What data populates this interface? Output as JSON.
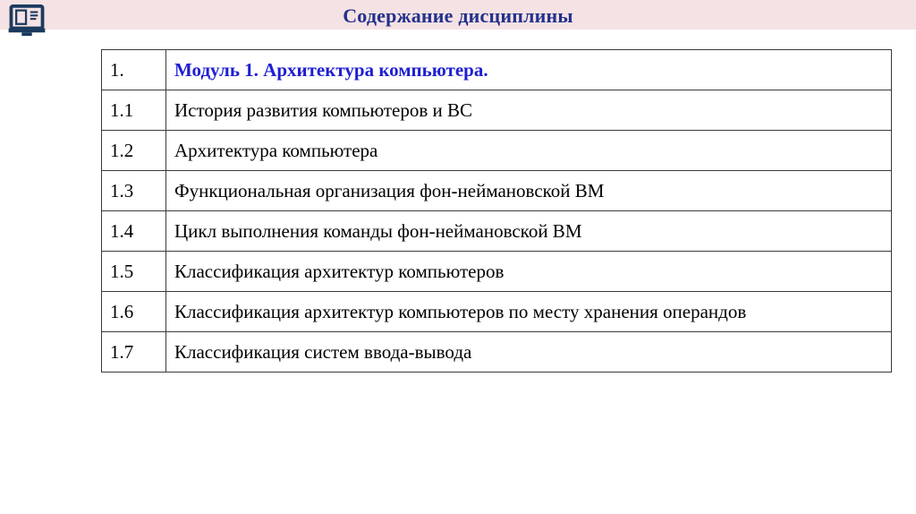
{
  "header": {
    "title": "Содержание дисциплины",
    "icon": "open-book-icon",
    "bg_color": "#f5e2e4",
    "title_color": "#23318d",
    "icon_color": "#1b3a5e"
  },
  "table": {
    "border_color": "#3a3a3a",
    "module_color": "#1e1ed2",
    "rows": [
      {
        "num": "1.",
        "title": "Модуль 1. Архитектура компьютера.",
        "style": "module"
      },
      {
        "num": "1.1",
        "title": "История развития компьютеров и ВС",
        "style": "normal"
      },
      {
        "num": "1.2",
        "title": "Архитектура компьютера",
        "style": "normal"
      },
      {
        "num": "1.3",
        "title": "Функциональная организация фон-неймановской ВМ",
        "style": "normal"
      },
      {
        "num": "1.4",
        "title": "Цикл выполнения команды фон-неймановской ВМ",
        "style": "normal"
      },
      {
        "num": "1.5",
        "title": "Классификация архитектур компьютеров",
        "style": "normal"
      },
      {
        "num": "1.6",
        "title": "Классификация архитектур компьютеров по месту хранения операндов",
        "style": "normal"
      },
      {
        "num": "1.7",
        "title": "Классификация систем ввода-вывода",
        "style": "normal"
      }
    ]
  }
}
